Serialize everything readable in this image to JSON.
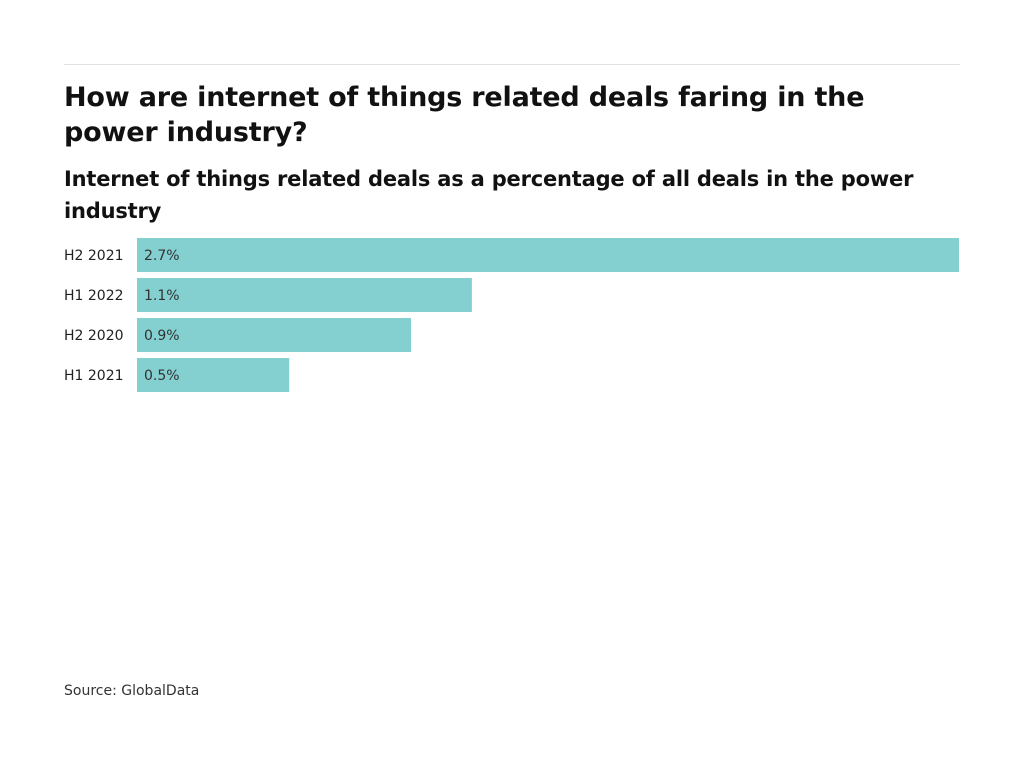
{
  "header": {
    "title": "How are internet of things related deals faring in the power industry?",
    "subtitle": "Internet of things related deals as a percentage of all deals in the power industry"
  },
  "footer": {
    "source": "Source: GlobalData"
  },
  "colors": {
    "bar": "#84d0d1",
    "label": "#222222",
    "value_label": "#333333"
  },
  "chart_data": {
    "type": "bar",
    "orientation": "horizontal",
    "title": "How are internet of things related deals faring in the power industry?",
    "subtitle": "Internet of things related deals as a percentage of all deals in the power industry",
    "xlabel": "",
    "ylabel": "",
    "categories": [
      "H2 2021",
      "H1 2022",
      "H2 2020",
      "H1 2021"
    ],
    "values": [
      2.7,
      1.1,
      0.9,
      0.5
    ],
    "value_labels": [
      "2.7%",
      "1.1%",
      "0.9%",
      "0.5%"
    ],
    "unit": "%",
    "xlim": [
      0,
      2.7
    ],
    "grid": false,
    "legend": "none",
    "source": "Source: GlobalData"
  }
}
